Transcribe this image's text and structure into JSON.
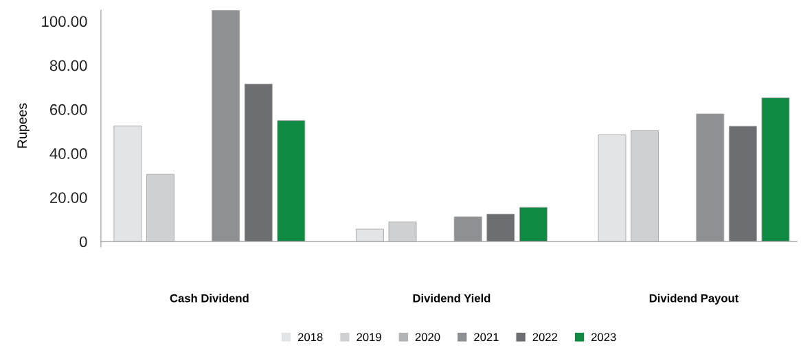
{
  "chart_data": {
    "type": "bar",
    "ylabel": "Rupees",
    "categories": [
      "Cash Dividend",
      "Dividend Yield",
      "Dividend Payout"
    ],
    "series": [
      {
        "name": "2018",
        "color": "#e3e4e6",
        "values": [
          52.4,
          5.6,
          48.4
        ]
      },
      {
        "name": "2019",
        "color": "#cfd0d2",
        "values": [
          30.5,
          8.9,
          50.3
        ]
      },
      {
        "name": "2020",
        "color": "#b3b4b6",
        "values": [
          null,
          null,
          null
        ]
      },
      {
        "name": "2021",
        "color": "#8f9094",
        "values": [
          105,
          11.2,
          57.9
        ]
      },
      {
        "name": "2022",
        "color": "#6d6e72",
        "values": [
          71.5,
          12.4,
          52.3
        ]
      },
      {
        "name": "2023",
        "color": "#0e8a43",
        "values": [
          54.9,
          15.5,
          65.2
        ]
      }
    ],
    "ylim": [
      0,
      105
    ],
    "yticks": [
      0,
      {
        "value": 20,
        "label": "20.00"
      },
      {
        "value": 40,
        "label": "40.00"
      },
      {
        "value": 60,
        "label": "60.00"
      },
      {
        "value": 80,
        "label": "80.00"
      },
      {
        "value": 100,
        "label": "100.00"
      }
    ],
    "grid": false,
    "legend": "bottom"
  }
}
